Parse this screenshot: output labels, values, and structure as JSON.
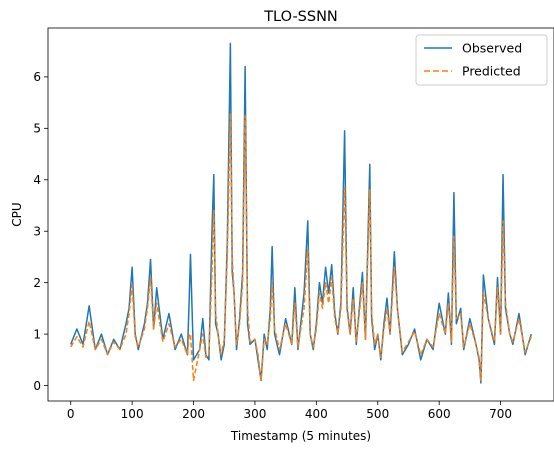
{
  "chart_data": {
    "type": "line",
    "title": "TLO-SSNN",
    "xlabel": "Timestamp (5 minutes)",
    "ylabel": "CPU",
    "xlim": [
      -37,
      787
    ],
    "ylim": [
      -0.3,
      6.95
    ],
    "xticks": [
      0,
      100,
      200,
      300,
      400,
      500,
      600,
      700
    ],
    "yticks": [
      0,
      1,
      2,
      3,
      4,
      5,
      6
    ],
    "grid": false,
    "legend": {
      "placement": "top-right"
    },
    "series": [
      {
        "name": "Observed",
        "color": "#1f77b4",
        "style": "solid",
        "x": [
          0,
          10,
          20,
          30,
          40,
          50,
          60,
          70,
          80,
          90,
          95,
          100,
          105,
          110,
          120,
          125,
          130,
          135,
          140,
          150,
          160,
          170,
          180,
          190,
          193,
          195,
          200,
          210,
          215,
          220,
          225,
          230,
          233,
          236,
          240,
          245,
          250,
          255,
          260,
          263,
          266,
          270,
          275,
          280,
          284,
          288,
          292,
          300,
          305,
          310,
          315,
          320,
          325,
          328,
          332,
          340,
          350,
          360,
          365,
          370,
          380,
          386,
          390,
          395,
          400,
          405,
          410,
          415,
          420,
          425,
          430,
          435,
          440,
          446,
          450,
          455,
          460,
          465,
          470,
          475,
          480,
          487,
          490,
          495,
          500,
          505,
          510,
          515,
          520,
          527,
          532,
          540,
          550,
          560,
          570,
          580,
          590,
          600,
          610,
          615,
          620,
          624,
          628,
          635,
          640,
          650,
          660,
          665,
          668,
          672,
          680,
          690,
          695,
          700,
          704,
          708,
          715,
          720,
          730,
          740,
          750
        ],
        "y": [
          0.8,
          1.1,
          0.8,
          1.55,
          0.7,
          1.0,
          0.6,
          0.9,
          0.7,
          1.2,
          1.5,
          2.3,
          1.0,
          0.7,
          1.2,
          1.6,
          2.45,
          1.1,
          1.9,
          0.9,
          1.4,
          0.7,
          1.0,
          0.6,
          1.7,
          2.55,
          0.5,
          0.7,
          1.3,
          0.6,
          0.5,
          3.0,
          4.1,
          1.2,
          1.0,
          0.5,
          0.8,
          2.8,
          6.65,
          2.2,
          1.8,
          0.7,
          1.3,
          2.2,
          6.2,
          1.2,
          0.8,
          0.9,
          0.5,
          0.1,
          1.0,
          0.7,
          1.5,
          2.7,
          1.0,
          0.6,
          1.3,
          0.8,
          1.9,
          0.7,
          1.8,
          3.2,
          1.0,
          0.7,
          1.2,
          2.0,
          1.6,
          2.3,
          1.8,
          2.35,
          1.4,
          1.0,
          1.6,
          4.95,
          1.5,
          1.0,
          1.9,
          0.8,
          1.5,
          2.2,
          0.9,
          4.3,
          1.3,
          0.7,
          1.0,
          0.5,
          1.2,
          1.7,
          1.0,
          2.6,
          1.5,
          0.6,
          0.8,
          1.1,
          0.5,
          0.9,
          0.7,
          1.6,
          1.0,
          1.8,
          0.8,
          3.75,
          1.2,
          1.5,
          0.7,
          1.3,
          0.8,
          0.5,
          0.05,
          2.15,
          1.3,
          0.8,
          2.1,
          1.0,
          4.1,
          1.5,
          1.0,
          0.8,
          1.4,
          0.6,
          1.0
        ]
      },
      {
        "name": "Predicted",
        "color": "#ff7f0e",
        "style": "dashed",
        "x": [
          0,
          10,
          20,
          30,
          40,
          50,
          60,
          70,
          80,
          90,
          95,
          100,
          105,
          110,
          120,
          125,
          130,
          135,
          140,
          150,
          160,
          170,
          180,
          190,
          193,
          195,
          200,
          210,
          215,
          220,
          225,
          230,
          233,
          236,
          240,
          245,
          250,
          255,
          260,
          263,
          266,
          270,
          275,
          280,
          284,
          288,
          292,
          300,
          305,
          310,
          315,
          320,
          325,
          328,
          332,
          340,
          350,
          360,
          365,
          370,
          380,
          386,
          390,
          395,
          400,
          405,
          410,
          415,
          420,
          425,
          430,
          435,
          440,
          446,
          450,
          455,
          460,
          465,
          470,
          475,
          480,
          487,
          490,
          495,
          500,
          505,
          510,
          515,
          520,
          527,
          532,
          540,
          550,
          560,
          570,
          580,
          590,
          600,
          610,
          615,
          620,
          624,
          628,
          635,
          640,
          650,
          660,
          665,
          668,
          672,
          680,
          690,
          695,
          700,
          704,
          708,
          715,
          720,
          730,
          740,
          750
        ],
        "y": [
          0.75,
          0.95,
          0.75,
          1.25,
          0.7,
          0.9,
          0.6,
          0.85,
          0.7,
          1.0,
          1.4,
          1.95,
          0.95,
          0.75,
          1.1,
          1.5,
          2.1,
          1.1,
          1.6,
          0.85,
          1.2,
          0.75,
          0.9,
          0.6,
          1.0,
          1.0,
          0.1,
          0.7,
          1.0,
          0.55,
          0.6,
          2.2,
          3.4,
          1.4,
          1.0,
          0.6,
          0.9,
          2.5,
          5.3,
          2.5,
          1.8,
          0.8,
          1.2,
          2.0,
          5.25,
          1.5,
          0.85,
          0.9,
          0.6,
          0.1,
          0.9,
          0.8,
          1.3,
          2.0,
          1.1,
          0.7,
          1.2,
          0.8,
          1.6,
          0.75,
          1.5,
          2.65,
          1.0,
          0.75,
          1.1,
          1.8,
          1.5,
          2.0,
          1.6,
          2.1,
          1.3,
          1.0,
          1.5,
          3.85,
          1.6,
          1.0,
          1.7,
          0.85,
          1.4,
          2.0,
          0.9,
          3.8,
          1.4,
          0.8,
          1.0,
          0.55,
          1.1,
          1.5,
          1.0,
          2.3,
          1.5,
          0.65,
          0.85,
          1.05,
          0.6,
          0.9,
          0.75,
          1.4,
          1.0,
          1.6,
          0.85,
          2.9,
          1.3,
          1.4,
          0.75,
          1.2,
          0.8,
          0.55,
          0.1,
          1.8,
          1.3,
          0.85,
          1.9,
          1.0,
          3.2,
          1.6,
          1.0,
          0.85,
          1.3,
          0.65,
          0.95
        ]
      }
    ]
  }
}
